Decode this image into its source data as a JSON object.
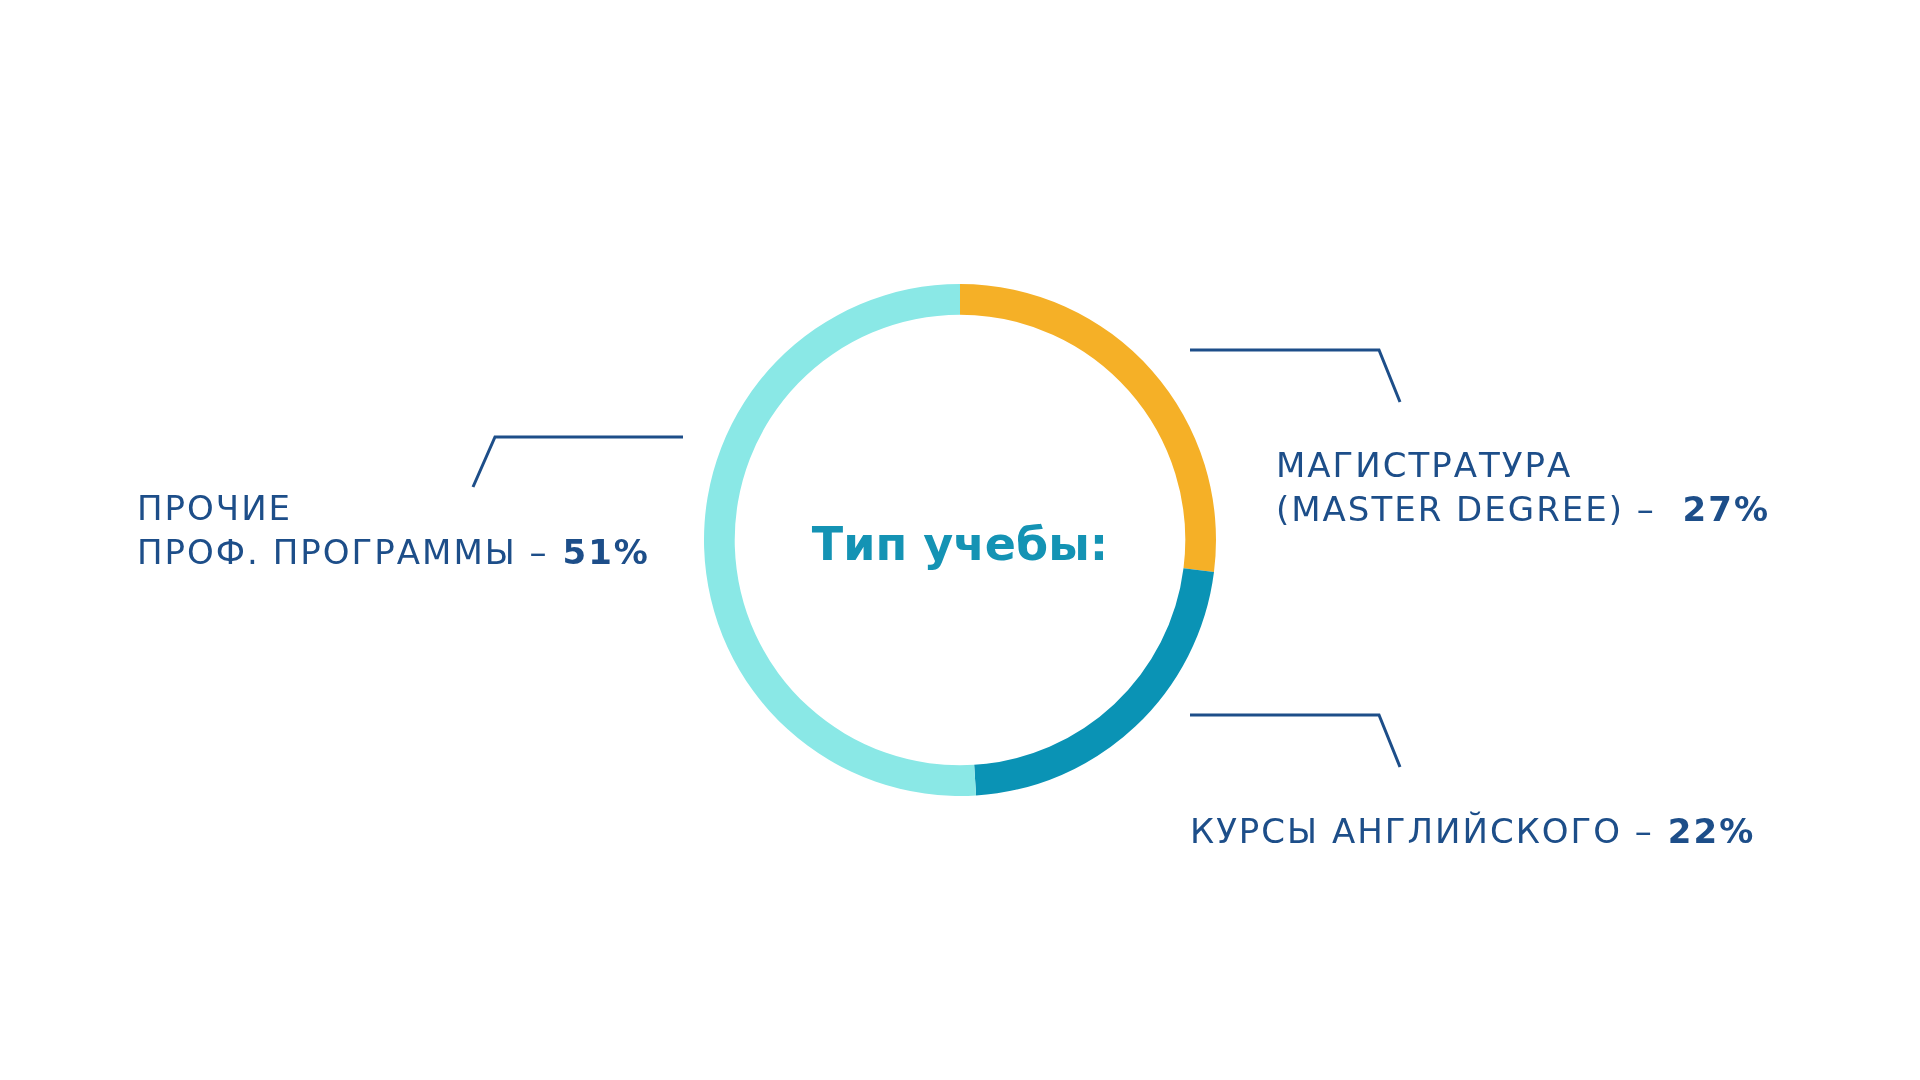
{
  "chart_data": {
    "type": "donut",
    "title": "Тип учебы:",
    "categories": [
      "МАГИСТРАТУРА\n(MASTER DEGREE) – ",
      "КУРСЫ АНГЛИЙСКОГО –",
      "ПРОЧИЕ\nПРОФ. ПРОГРАММЫ –"
    ],
    "values": [
      27,
      22,
      51
    ],
    "value_labels": [
      "27%",
      "22%",
      "51%"
    ],
    "colors": [
      "#f5b027",
      "#0a93b5",
      "#8ae8e6"
    ],
    "legend": false
  }
}
